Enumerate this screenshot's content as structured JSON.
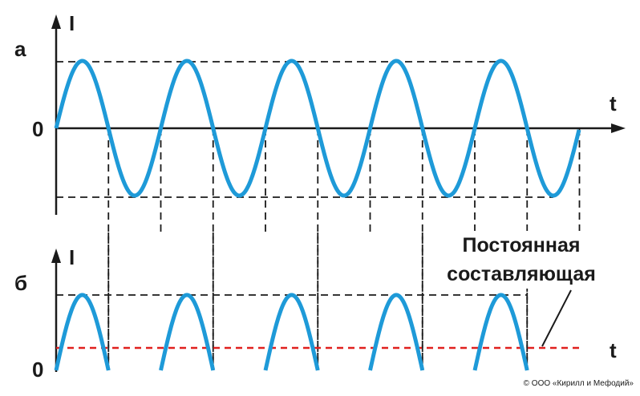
{
  "panel_a": {
    "label": "а",
    "y_axis": "I",
    "x_axis": "t",
    "origin": "0"
  },
  "panel_b": {
    "label": "б",
    "y_axis": "I",
    "x_axis": "t",
    "origin": "0"
  },
  "annotation": {
    "lines": [
      "Постоянная",
      "составляющая"
    ]
  },
  "copyright": "© ООО «Кирилл и Мефодий»"
}
